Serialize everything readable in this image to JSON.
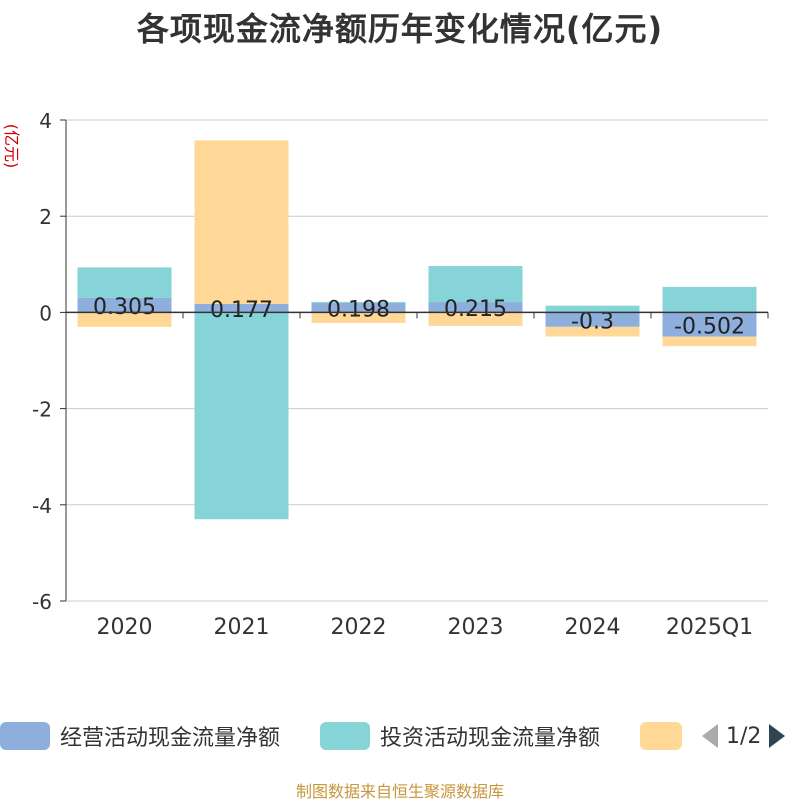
{
  "title": "各项现金流净额历年变化情况(亿元)",
  "source_note": "制图数据来自恒生聚源数据库",
  "legend": {
    "items": [
      {
        "label": "经营活动现金流量净额",
        "color": "#8eaedb"
      },
      {
        "label": "投资活动现金流量净额",
        "color": "#86d4d8"
      },
      {
        "label": "",
        "color": "#ffd898"
      }
    ],
    "page": "1/2"
  },
  "chart_data": {
    "type": "bar",
    "stacked": true,
    "title": "各项现金流净额历年变化情况(亿元)",
    "ylabel": "(亿元)",
    "categories": [
      "2020",
      "2021",
      "2022",
      "2023",
      "2024",
      "2025Q1"
    ],
    "ylim": [
      -6,
      4
    ],
    "yticks": [
      4,
      2,
      0,
      -2,
      -4,
      -6
    ],
    "grid": true,
    "legend_position": "bottom",
    "series": [
      {
        "name": "经营活动现金流量净额",
        "color": "#8eaedb",
        "values": [
          0.305,
          0.177,
          0.198,
          0.215,
          -0.3,
          -0.502
        ],
        "labels": [
          "0.305",
          "0.177",
          "0.198",
          "0.215",
          "-0.3",
          "-0.502"
        ]
      },
      {
        "name": "投资活动现金流量净额",
        "color": "#86d4d8",
        "values": [
          0.63,
          -4.3,
          0.02,
          0.75,
          0.14,
          0.53
        ]
      },
      {
        "color": "#ffd898",
        "values": [
          -0.3,
          3.4,
          -0.22,
          -0.28,
          -0.2,
          -0.2
        ]
      }
    ]
  }
}
